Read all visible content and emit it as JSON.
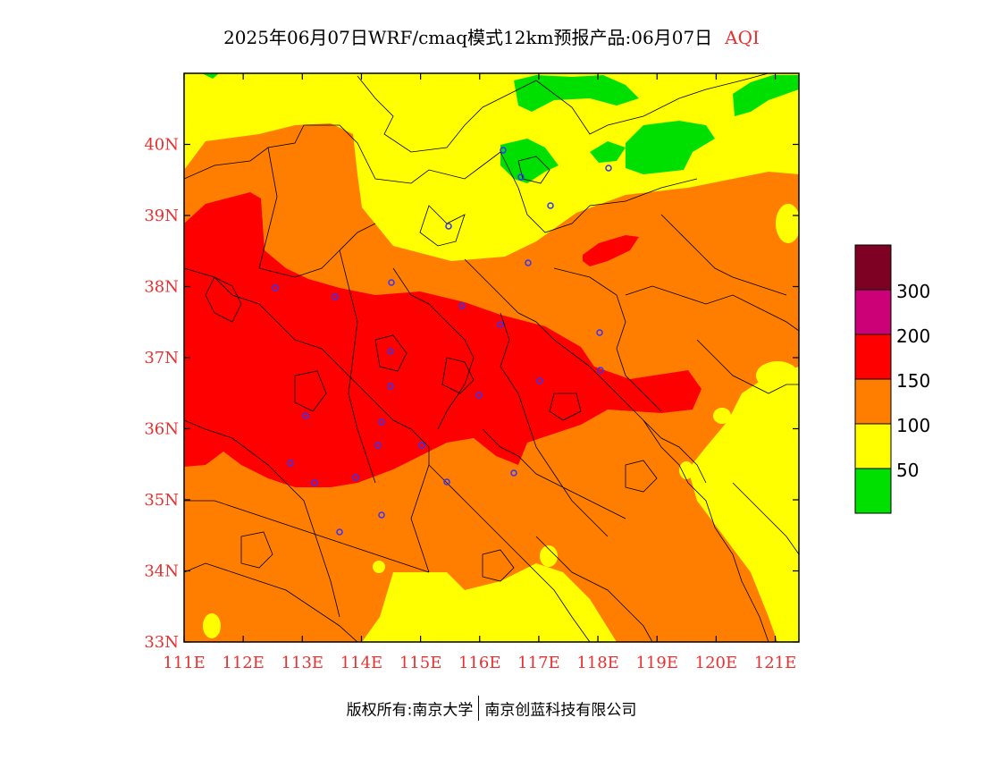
{
  "title": {
    "main": "2025年06月07日WRF/cmaq模式12km预报产品:06月07日",
    "variable": "AQI"
  },
  "map": {
    "lon_range": [
      111,
      121.4
    ],
    "lat_range": [
      33,
      41
    ],
    "x_ticks": [
      "111E",
      "112E",
      "113E",
      "114E",
      "115E",
      "116E",
      "117E",
      "118E",
      "119E",
      "120E",
      "121E"
    ],
    "y_ticks": [
      "33N",
      "34N",
      "35N",
      "36N",
      "37N",
      "38N",
      "39N",
      "40N"
    ],
    "tick_color": "#e83030"
  },
  "legend": {
    "levels": [
      {
        "label": "",
        "color": "#00e000"
      },
      {
        "label": "50",
        "color": "#ffff00"
      },
      {
        "label": "100",
        "color": "#ff7e00"
      },
      {
        "label": "150",
        "color": "#ff0000"
      },
      {
        "label": "200",
        "color": "#cc0077"
      },
      {
        "label": "300",
        "color": "#7e0023"
      }
    ]
  },
  "footer": {
    "copyright": "版权所有:南京大学",
    "company": "南京创蓝科技有限公司"
  }
}
